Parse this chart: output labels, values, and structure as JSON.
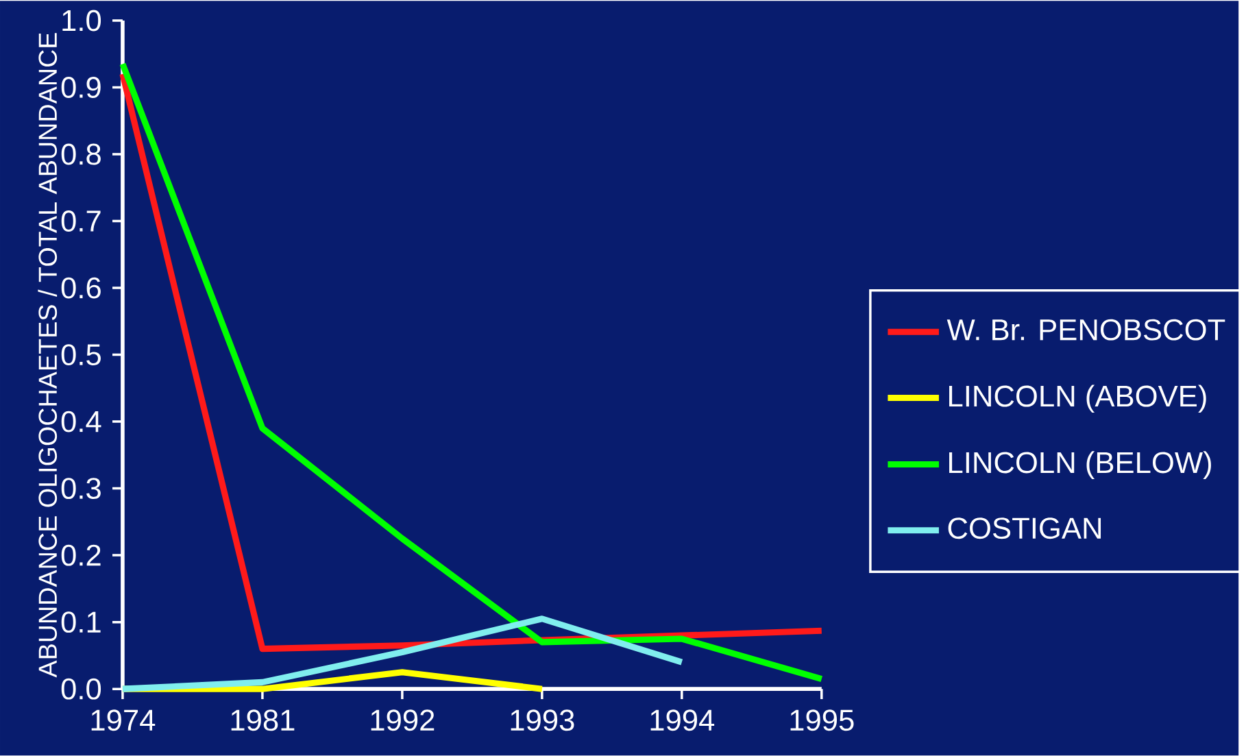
{
  "chart_data": {
    "type": "line",
    "ylabel": "ABUNDANCE OLIGOCHAETES / TOTAL ABUNDANCE",
    "categories": [
      "1974",
      "1981",
      "1992",
      "1993",
      "1994",
      "1995"
    ],
    "series": [
      {
        "name": "W. Br. PENOBSCOT",
        "color": "#ff1a1a",
        "values": [
          0.92,
          0.06,
          0.065,
          0.073,
          0.08,
          0.087
        ]
      },
      {
        "name": "LINCOLN (ABOVE)",
        "color": "#ffff00",
        "values": [
          0.0,
          0.0,
          0.025,
          0.0,
          null,
          null
        ]
      },
      {
        "name": "LINCOLN (BELOW)",
        "color": "#00ff00",
        "values": [
          0.935,
          0.39,
          0.225,
          0.07,
          0.075,
          0.015
        ]
      },
      {
        "name": "COSTIGAN",
        "color": "#80eeee",
        "values": [
          0.0,
          0.01,
          0.055,
          0.105,
          0.04,
          null
        ]
      }
    ],
    "ylim": [
      0,
      1
    ],
    "yticks": [
      {
        "value": 0,
        "label": "0.0"
      },
      0.1,
      0.2,
      0.3,
      0.4,
      0.5,
      0.6,
      0.7,
      0.8,
      0.9,
      {
        "value": 1,
        "label": "1.0"
      }
    ],
    "legend": "right",
    "marker": "none",
    "line_style": "solid",
    "grid": false
  }
}
